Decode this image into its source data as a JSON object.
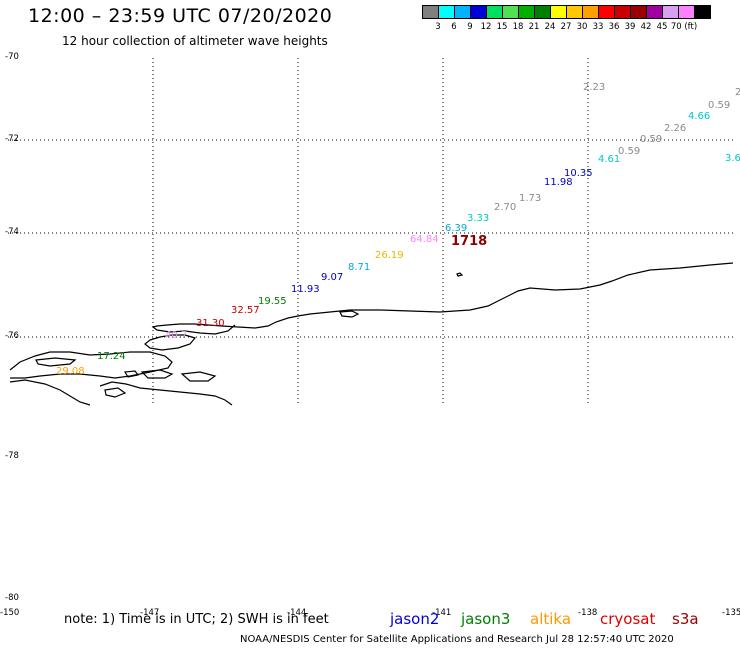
{
  "title": "12:00 – 23:59 UTC 07/20/2020",
  "subtitle": "12 hour collection of altimeter wave heights",
  "color_scale": {
    "colors": [
      "#7f7f7f",
      "#00ffff",
      "#00b4ff",
      "#0000d8",
      "#00e060",
      "#50e050",
      "#00b000",
      "#008000",
      "#ffff00",
      "#ffc800",
      "#ffa000",
      "#ff0000",
      "#c80000",
      "#9a0000",
      "#a000a0",
      "#d8a0f0",
      "#ff80ff",
      "#000000"
    ],
    "labels": [
      "3",
      "6",
      "9",
      "12",
      "15",
      "18",
      "21",
      "24",
      "27",
      "30",
      "33",
      "36",
      "39",
      "42",
      "45",
      "70 (ft)"
    ]
  },
  "lat_labels": [
    "-70",
    "-72",
    "-74",
    "-76",
    "-78",
    "-80"
  ],
  "lon_labels": [
    "-150",
    "-147",
    "-144",
    "-141",
    "-138",
    "-135"
  ],
  "wave_labels": [
    {
      "text": "2.23",
      "color": "#8a8a8a"
    },
    {
      "text": "2",
      "color": "#8a8a8a"
    },
    {
      "text": "0.59",
      "color": "#8a8a8a"
    },
    {
      "text": "4.66",
      "color": "#00c8c8"
    },
    {
      "text": "2.26",
      "color": "#8a8a8a"
    },
    {
      "text": "0.59",
      "color": "#8a8a8a"
    },
    {
      "text": "0.59",
      "color": "#8a8a8a"
    },
    {
      "text": "3.6",
      "color": "#00c8c8"
    },
    {
      "text": "4.61",
      "color": "#00c8c8"
    },
    {
      "text": "10.35",
      "color": "#0000c8"
    },
    {
      "text": "11.98",
      "color": "#0000c8"
    },
    {
      "text": "1.73",
      "color": "#8a8a8a"
    },
    {
      "text": "2.70",
      "color": "#8a8a8a"
    },
    {
      "text": "3.33",
      "color": "#00c8c8"
    },
    {
      "text": "6.39",
      "color": "#00a8e0"
    },
    {
      "text": "64.84",
      "color": "#ff80ff"
    },
    {
      "text": "1718",
      "color": "#8b0000"
    },
    {
      "text": "26.19",
      "color": "#e8b800"
    },
    {
      "text": "8.71",
      "color": "#00a8e0"
    },
    {
      "text": "9.07",
      "color": "#0000c8"
    },
    {
      "text": "11.93",
      "color": "#0000c8"
    },
    {
      "text": "19.55",
      "color": "#008000"
    },
    {
      "text": "32.57",
      "color": "#c80000"
    },
    {
      "text": "31.30",
      "color": "#c80000"
    },
    {
      "text": "40.7",
      "color": "#d898f0"
    },
    {
      "text": "17.24",
      "color": "#008000"
    },
    {
      "text": "29.08",
      "color": "#ffa000"
    }
  ],
  "note": "note: 1) Time is in UTC; 2) SWH is in feet",
  "legend": [
    {
      "text": "jason2",
      "color": "#0000e0"
    },
    {
      "text": "jason3",
      "color": "#008000"
    },
    {
      "text": "altika",
      "color": "#ff9800"
    },
    {
      "text": "cryosat",
      "color": "#e00000"
    },
    {
      "text": "s3a",
      "color": "#9a0000"
    }
  ],
  "footer": "NOAA/NESDIS Center for Satellite Applications and Research    Jul 28 12:57:40 UTC 2020"
}
